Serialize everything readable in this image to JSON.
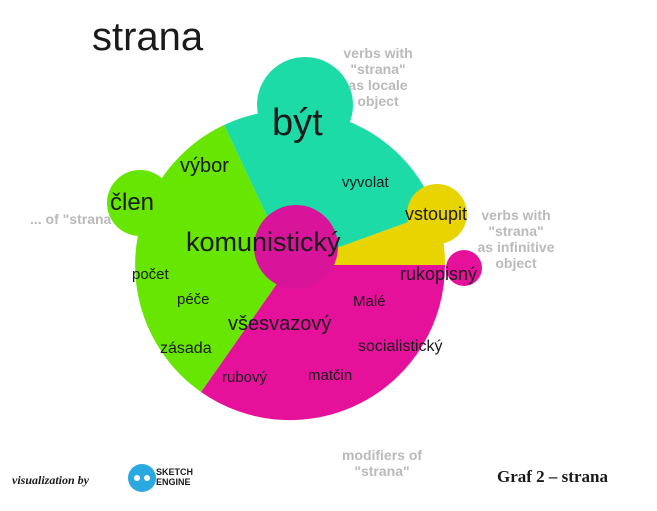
{
  "title": "strana",
  "groups": [
    {
      "lines": [
        "verbs with",
        "\"strana\"",
        "as locale",
        "object"
      ]
    },
    {
      "lines": [
        "... of \"strana\""
      ]
    },
    {
      "lines": [
        "verbs with",
        "\"strana\"",
        "as infinitive",
        "object"
      ]
    },
    {
      "lines": [
        "modifiers of",
        "\"strana\""
      ]
    }
  ],
  "words": [
    "být",
    "výbor",
    "člen",
    "vyvolat",
    "vstoupit",
    "komunistický",
    "počet",
    "péče",
    "rukopisný",
    "Malé",
    "všesvazový",
    "socialistický",
    "zásada",
    "rubový",
    "matčin"
  ],
  "caption": "Graf 2 – strana",
  "credit": "visualization by",
  "logo": [
    "SKETCH",
    "ENGINE"
  ]
}
